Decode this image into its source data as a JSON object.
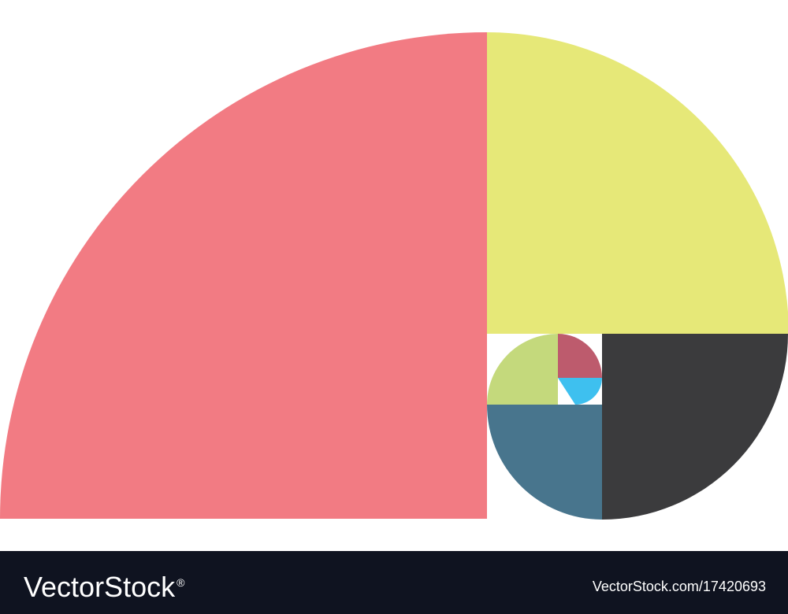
{
  "artwork": {
    "subject": "golden ratio spiral",
    "colors": {
      "largest_segment": "#f27b83",
      "second_segment": "#e6e878",
      "third_segment": "#3b3b3d",
      "fourth_segment": "#48758d",
      "fifth_segment": "#c4d97c",
      "sixth_segment": "#bd5b6d",
      "seventh_segment": "#3ec0ef",
      "background": "#ffffff"
    }
  },
  "footer": {
    "background": "#0f1320",
    "brand": "VectorStock",
    "brand_mark": "®",
    "image_id": "VectorStock.com/17420693"
  }
}
